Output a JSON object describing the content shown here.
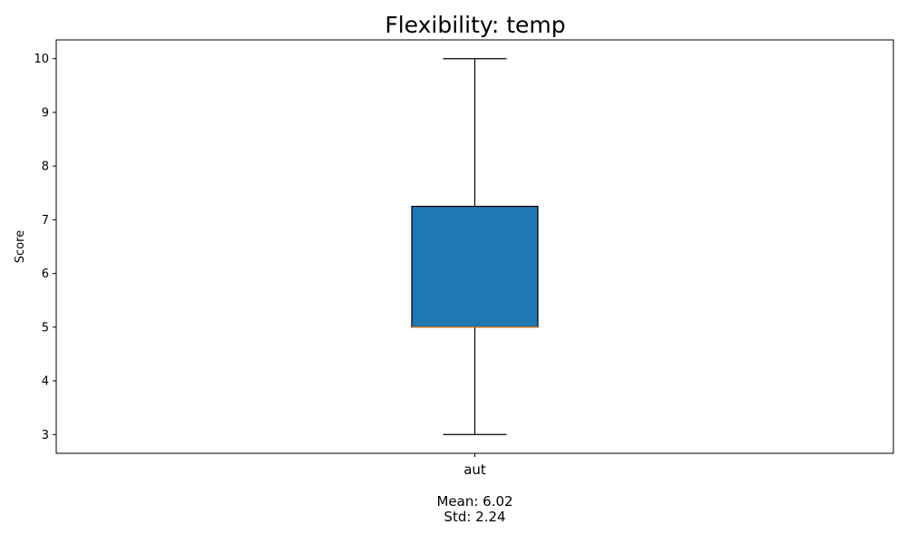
{
  "chart_data": {
    "type": "box",
    "title": "Flexibility: temp",
    "xlabel": "",
    "ylabel": "Score",
    "ylim": [
      2.65,
      10.35
    ],
    "yticks": [
      3,
      4,
      5,
      6,
      7,
      8,
      9,
      10
    ],
    "categories": [
      "aut"
    ],
    "boxes": [
      {
        "category": "aut",
        "whisker_low": 3,
        "q1": 5,
        "median": 5,
        "q3": 7.25,
        "whisker_high": 10
      }
    ],
    "box_color": "#1f77b4",
    "median_color": "#ff7f0e",
    "stats": [
      {
        "category": "aut",
        "mean_text": "Mean: 6.02",
        "std_text": "Std: 2.24"
      }
    ],
    "grid": false
  }
}
